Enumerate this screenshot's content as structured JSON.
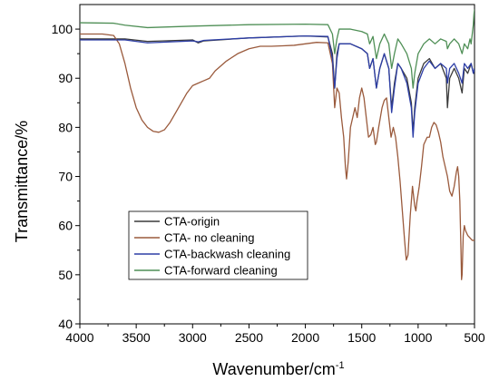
{
  "chart_data": {
    "type": "line",
    "title": "",
    "xlabel": "Wavenumber/cm",
    "xlabel_superscript": "-1",
    "ylabel": "Transmittance/%",
    "xlim": [
      4000,
      500
    ],
    "ylim": [
      40,
      105
    ],
    "x_ticks": [
      4000,
      3500,
      3000,
      2500,
      2000,
      1500,
      1000,
      500
    ],
    "y_ticks": [
      40,
      50,
      60,
      70,
      80,
      90,
      100
    ],
    "grid": false,
    "legend_position": "bottom-left",
    "series": [
      {
        "name": "CTA-origin",
        "color": "#3a3a3a",
        "points": [
          [
            4000,
            98
          ],
          [
            3600,
            98
          ],
          [
            3400,
            97.5
          ],
          [
            3000,
            97.8
          ],
          [
            2950,
            97.2
          ],
          [
            2900,
            97.6
          ],
          [
            2500,
            98.2
          ],
          [
            2000,
            98.6
          ],
          [
            1800,
            98.4
          ],
          [
            1760,
            95
          ],
          [
            1740,
            88
          ],
          [
            1720,
            95
          ],
          [
            1700,
            97
          ],
          [
            1600,
            97
          ],
          [
            1500,
            96
          ],
          [
            1450,
            95
          ],
          [
            1430,
            92
          ],
          [
            1400,
            94
          ],
          [
            1370,
            88
          ],
          [
            1340,
            92
          ],
          [
            1300,
            95
          ],
          [
            1260,
            92
          ],
          [
            1235,
            84
          ],
          [
            1210,
            89
          ],
          [
            1180,
            93
          ],
          [
            1150,
            92
          ],
          [
            1100,
            90
          ],
          [
            1060,
            85
          ],
          [
            1045,
            79
          ],
          [
            1030,
            84
          ],
          [
            1000,
            90
          ],
          [
            950,
            93
          ],
          [
            900,
            94
          ],
          [
            850,
            92
          ],
          [
            800,
            93
          ],
          [
            750,
            90
          ],
          [
            740,
            84
          ],
          [
            720,
            90
          ],
          [
            680,
            92
          ],
          [
            640,
            90
          ],
          [
            610,
            87
          ],
          [
            590,
            92
          ],
          [
            560,
            91
          ],
          [
            530,
            93
          ],
          [
            510,
            91
          ],
          [
            500,
            92
          ]
        ]
      },
      {
        "name": "CTA- no cleaning",
        "color": "#9a5a3c",
        "points": [
          [
            4000,
            99
          ],
          [
            3800,
            99
          ],
          [
            3700,
            98.7
          ],
          [
            3650,
            97
          ],
          [
            3600,
            93
          ],
          [
            3550,
            88
          ],
          [
            3500,
            84
          ],
          [
            3450,
            81.5
          ],
          [
            3400,
            80
          ],
          [
            3350,
            79.2
          ],
          [
            3300,
            79
          ],
          [
            3250,
            79.5
          ],
          [
            3200,
            81
          ],
          [
            3150,
            83
          ],
          [
            3100,
            85
          ],
          [
            3050,
            87
          ],
          [
            3000,
            88.5
          ],
          [
            2950,
            89
          ],
          [
            2900,
            89.5
          ],
          [
            2850,
            90
          ],
          [
            2800,
            91.5
          ],
          [
            2700,
            93.5
          ],
          [
            2600,
            95
          ],
          [
            2500,
            96
          ],
          [
            2400,
            96.5
          ],
          [
            2300,
            96.5
          ],
          [
            2200,
            96.6
          ],
          [
            2100,
            96.7
          ],
          [
            2000,
            97
          ],
          [
            1900,
            97.3
          ],
          [
            1800,
            97.2
          ],
          [
            1760,
            93
          ],
          [
            1740,
            84
          ],
          [
            1720,
            88
          ],
          [
            1700,
            87
          ],
          [
            1680,
            82
          ],
          [
            1660,
            78
          ],
          [
            1645,
            72
          ],
          [
            1635,
            69.5
          ],
          [
            1620,
            73
          ],
          [
            1600,
            80
          ],
          [
            1560,
            84
          ],
          [
            1540,
            82
          ],
          [
            1520,
            86
          ],
          [
            1500,
            88
          ],
          [
            1480,
            86
          ],
          [
            1460,
            82
          ],
          [
            1440,
            78
          ],
          [
            1420,
            78.5
          ],
          [
            1400,
            80
          ],
          [
            1380,
            76.5
          ],
          [
            1370,
            77
          ],
          [
            1350,
            80
          ],
          [
            1320,
            84
          ],
          [
            1300,
            85.5
          ],
          [
            1280,
            86
          ],
          [
            1260,
            82
          ],
          [
            1240,
            78
          ],
          [
            1220,
            80
          ],
          [
            1200,
            78
          ],
          [
            1180,
            74
          ],
          [
            1160,
            69
          ],
          [
            1140,
            63
          ],
          [
            1120,
            57
          ],
          [
            1105,
            53
          ],
          [
            1090,
            54
          ],
          [
            1070,
            62
          ],
          [
            1050,
            68
          ],
          [
            1030,
            64
          ],
          [
            1020,
            63
          ],
          [
            1010,
            65
          ],
          [
            990,
            68
          ],
          [
            970,
            72
          ],
          [
            950,
            76.5
          ],
          [
            920,
            78
          ],
          [
            900,
            78
          ],
          [
            880,
            80
          ],
          [
            860,
            81
          ],
          [
            840,
            80.5
          ],
          [
            820,
            79
          ],
          [
            800,
            77
          ],
          [
            780,
            74
          ],
          [
            760,
            72
          ],
          [
            740,
            70
          ],
          [
            720,
            67
          ],
          [
            700,
            66
          ],
          [
            680,
            68
          ],
          [
            660,
            71
          ],
          [
            650,
            72
          ],
          [
            640,
            70
          ],
          [
            630,
            65
          ],
          [
            620,
            55
          ],
          [
            615,
            49
          ],
          [
            610,
            50
          ],
          [
            600,
            58
          ],
          [
            590,
            60
          ],
          [
            580,
            59
          ],
          [
            560,
            58
          ],
          [
            540,
            57.5
          ],
          [
            520,
            57
          ],
          [
            500,
            57
          ]
        ]
      },
      {
        "name": "CTA-backwash cleaning",
        "color": "#2d3ea6",
        "points": [
          [
            4000,
            97.8
          ],
          [
            3600,
            97.8
          ],
          [
            3400,
            97.2
          ],
          [
            3000,
            97.6
          ],
          [
            2950,
            97.4
          ],
          [
            2900,
            97.7
          ],
          [
            2500,
            98.2
          ],
          [
            2000,
            98.6
          ],
          [
            1800,
            98.5
          ],
          [
            1760,
            94
          ],
          [
            1740,
            88
          ],
          [
            1720,
            94
          ],
          [
            1700,
            97
          ],
          [
            1600,
            97
          ],
          [
            1500,
            96
          ],
          [
            1450,
            95
          ],
          [
            1430,
            92
          ],
          [
            1400,
            94
          ],
          [
            1370,
            88
          ],
          [
            1340,
            92
          ],
          [
            1300,
            95
          ],
          [
            1260,
            92
          ],
          [
            1235,
            83
          ],
          [
            1210,
            88
          ],
          [
            1180,
            93
          ],
          [
            1150,
            92
          ],
          [
            1100,
            89
          ],
          [
            1060,
            84
          ],
          [
            1045,
            78
          ],
          [
            1030,
            83
          ],
          [
            1000,
            89
          ],
          [
            950,
            92
          ],
          [
            900,
            93.5
          ],
          [
            850,
            92
          ],
          [
            800,
            93
          ],
          [
            750,
            92
          ],
          [
            740,
            89
          ],
          [
            720,
            92
          ],
          [
            680,
            93
          ],
          [
            640,
            91
          ],
          [
            610,
            89
          ],
          [
            590,
            93
          ],
          [
            560,
            92
          ],
          [
            530,
            93
          ],
          [
            510,
            91
          ],
          [
            500,
            92
          ]
        ]
      },
      {
        "name": "CTA-forward cleaning",
        "color": "#4f8f56",
        "points": [
          [
            4000,
            101.3
          ],
          [
            3700,
            101.2
          ],
          [
            3600,
            100.8
          ],
          [
            3400,
            100.3
          ],
          [
            3000,
            100.6
          ],
          [
            2500,
            100.9
          ],
          [
            2000,
            101
          ],
          [
            1800,
            100.9
          ],
          [
            1760,
            99
          ],
          [
            1740,
            95
          ],
          [
            1720,
            98
          ],
          [
            1700,
            100
          ],
          [
            1600,
            100
          ],
          [
            1500,
            99.5
          ],
          [
            1450,
            99
          ],
          [
            1430,
            97
          ],
          [
            1400,
            98.5
          ],
          [
            1370,
            94
          ],
          [
            1340,
            97
          ],
          [
            1300,
            99
          ],
          [
            1260,
            97
          ],
          [
            1235,
            92
          ],
          [
            1210,
            95
          ],
          [
            1180,
            98
          ],
          [
            1150,
            97
          ],
          [
            1100,
            95
          ],
          [
            1060,
            92
          ],
          [
            1045,
            88
          ],
          [
            1030,
            91
          ],
          [
            1000,
            95
          ],
          [
            950,
            97
          ],
          [
            900,
            98
          ],
          [
            850,
            97
          ],
          [
            800,
            98
          ],
          [
            750,
            97.5
          ],
          [
            740,
            96
          ],
          [
            720,
            97
          ],
          [
            680,
            98
          ],
          [
            640,
            97
          ],
          [
            610,
            95
          ],
          [
            590,
            97
          ],
          [
            560,
            96
          ],
          [
            540,
            98
          ],
          [
            530,
            97
          ],
          [
            520,
            99
          ],
          [
            510,
            101
          ],
          [
            505,
            103
          ],
          [
            500,
            104
          ]
        ]
      }
    ]
  }
}
